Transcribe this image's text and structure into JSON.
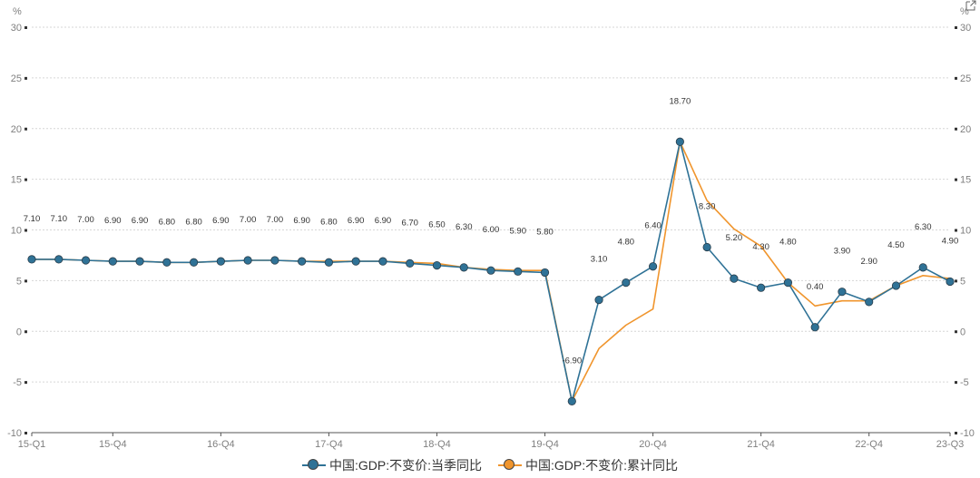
{
  "chart_data": {
    "type": "line",
    "unit_left": "%",
    "unit_right": "%",
    "quarters": [
      "15-Q1",
      "15-Q2",
      "15-Q3",
      "15-Q4",
      "16-Q1",
      "16-Q2",
      "16-Q3",
      "16-Q4",
      "17-Q1",
      "17-Q2",
      "17-Q3",
      "17-Q4",
      "18-Q1",
      "18-Q2",
      "18-Q3",
      "18-Q4",
      "19-Q1",
      "19-Q2",
      "19-Q3",
      "19-Q4",
      "20-Q1",
      "20-Q2",
      "20-Q3",
      "20-Q4",
      "21-Q1",
      "21-Q2",
      "21-Q3",
      "21-Q4",
      "22-Q1",
      "22-Q2",
      "22-Q3",
      "22-Q4",
      "23-Q1",
      "23-Q2",
      "23-Q3"
    ],
    "x_tick_labels": [
      "15-Q1",
      "15-Q4",
      "16-Q4",
      "17-Q4",
      "18-Q4",
      "19-Q4",
      "20-Q4",
      "21-Q4",
      "22-Q4",
      "23-Q3"
    ],
    "ylim": [
      -10,
      30
    ],
    "y_ticks": [
      -10,
      -5,
      0,
      5,
      10,
      15,
      20,
      25,
      30
    ],
    "grid": true,
    "legend_position": "bottom",
    "series": [
      {
        "name": "中国:GDP:不变价:当季同比",
        "color": "#2f7296",
        "markers": true,
        "values": [
          7.1,
          7.1,
          7.0,
          6.9,
          6.9,
          6.8,
          6.8,
          6.9,
          7.0,
          7.0,
          6.9,
          6.8,
          6.9,
          6.9,
          6.7,
          6.5,
          6.3,
          6.0,
          5.9,
          5.8,
          -6.9,
          3.1,
          4.8,
          6.4,
          18.7,
          8.3,
          5.2,
          4.3,
          4.8,
          0.4,
          3.9,
          2.9,
          4.5,
          6.3,
          4.9
        ],
        "labels": [
          "7.10",
          "7.10",
          "7.00",
          "6.90",
          "6.90",
          "6.80",
          "6.80",
          "6.90",
          "7.00",
          "7.00",
          "6.90",
          "6.80",
          "6.90",
          "6.90",
          "6.70",
          "6.50",
          "6.30",
          "6.00",
          "5.90",
          "5.80",
          "-6.90",
          "3.10",
          "4.80",
          "6.40",
          "18.70",
          "8.30",
          "5.20",
          "4.30",
          "4.80",
          "0.40",
          "3.90",
          "2.90",
          "4.50",
          "6.30",
          "4.90"
        ]
      },
      {
        "name": "中国:GDP:不变价:累计同比",
        "color": "#f0952d",
        "markers": false,
        "values": [
          7.1,
          7.1,
          7.0,
          6.9,
          6.9,
          6.8,
          6.8,
          6.9,
          7.0,
          7.0,
          6.9,
          6.9,
          6.9,
          6.9,
          6.8,
          6.7,
          6.3,
          6.1,
          6.0,
          6.0,
          -6.9,
          -1.7,
          0.6,
          2.2,
          18.7,
          12.9,
          10.1,
          8.4,
          4.8,
          2.5,
          3.0,
          3.0,
          4.5,
          5.5,
          5.2
        ]
      }
    ]
  },
  "icons": {
    "export": "external-link-icon"
  }
}
